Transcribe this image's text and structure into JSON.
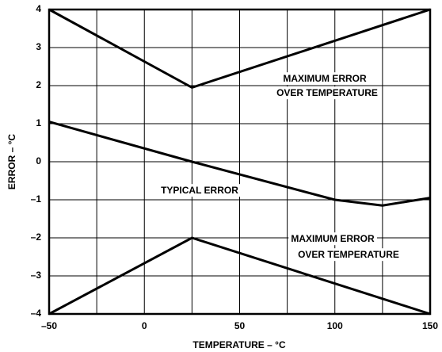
{
  "chart_data": {
    "type": "line",
    "x_label": "TEMPERATURE – °C",
    "y_label": "ERROR – °C",
    "xlim": [
      -50,
      150
    ],
    "xticks": [
      {
        "value": -50,
        "label": "–50"
      },
      0,
      50,
      100,
      150
    ],
    "xminor_ticks": [
      -25,
      25,
      75,
      125
    ],
    "ylim": [
      -4,
      4
    ],
    "yticks": [
      {
        "value": -4,
        "label": "–4"
      },
      {
        "value": -3,
        "label": "–3"
      },
      {
        "value": -2,
        "label": "–2"
      },
      {
        "value": -1,
        "label": "–1"
      },
      0,
      1,
      2,
      3,
      4
    ],
    "grid": true,
    "series": [
      {
        "color": "#000000",
        "x": [
          -50,
          25,
          150
        ],
        "values": [
          4,
          1.95,
          4
        ]
      },
      {
        "color": "#000000",
        "x": [
          -50,
          25,
          100,
          125,
          150
        ],
        "values": [
          1.05,
          0,
          -1.0,
          -1.15,
          -0.95
        ]
      },
      {
        "color": "#000000",
        "x": [
          -50,
          25,
          150
        ],
        "values": [
          -4,
          -2,
          -4
        ]
      }
    ],
    "annotations": [
      "MAXIMUM ERROR",
      "OVER TEMPERATURE",
      "TYPICAL ERROR",
      "MAXIMUM ERROR",
      "OVER TEMPERATURE"
    ]
  }
}
